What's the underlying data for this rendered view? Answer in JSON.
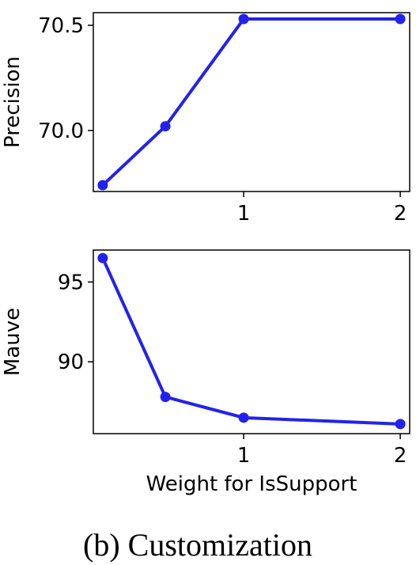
{
  "caption": "(b) Customization",
  "line_color": "#2222ee",
  "chart_data": [
    {
      "type": "line",
      "title": "",
      "xlabel": "",
      "ylabel": "Precision",
      "x": [
        0.1,
        0.5,
        1,
        2
      ],
      "series": [
        {
          "values": [
            69.74,
            70.02,
            70.53,
            70.53
          ]
        }
      ],
      "xlim": [
        0.04,
        2.06
      ],
      "ylim": [
        69.71,
        70.56
      ],
      "xticks": [
        1,
        2
      ],
      "xticklabels": [
        "1",
        "2"
      ],
      "yticks": [
        70.0,
        70.5
      ],
      "yticklabels": [
        "70.0",
        "70.5"
      ],
      "grid": false,
      "legend": "none"
    },
    {
      "type": "line",
      "title": "",
      "xlabel": "Weight for IsSupport",
      "ylabel": "Mauve",
      "x": [
        0.1,
        0.5,
        1,
        2
      ],
      "series": [
        {
          "values": [
            96.5,
            87.8,
            86.5,
            86.1
          ]
        }
      ],
      "xlim": [
        0.04,
        2.06
      ],
      "ylim": [
        85.5,
        97.0
      ],
      "xticks": [
        1,
        2
      ],
      "xticklabels": [
        "1",
        "2"
      ],
      "yticks": [
        90,
        95
      ],
      "yticklabels": [
        "90",
        "95"
      ],
      "grid": false,
      "legend": "none"
    }
  ]
}
